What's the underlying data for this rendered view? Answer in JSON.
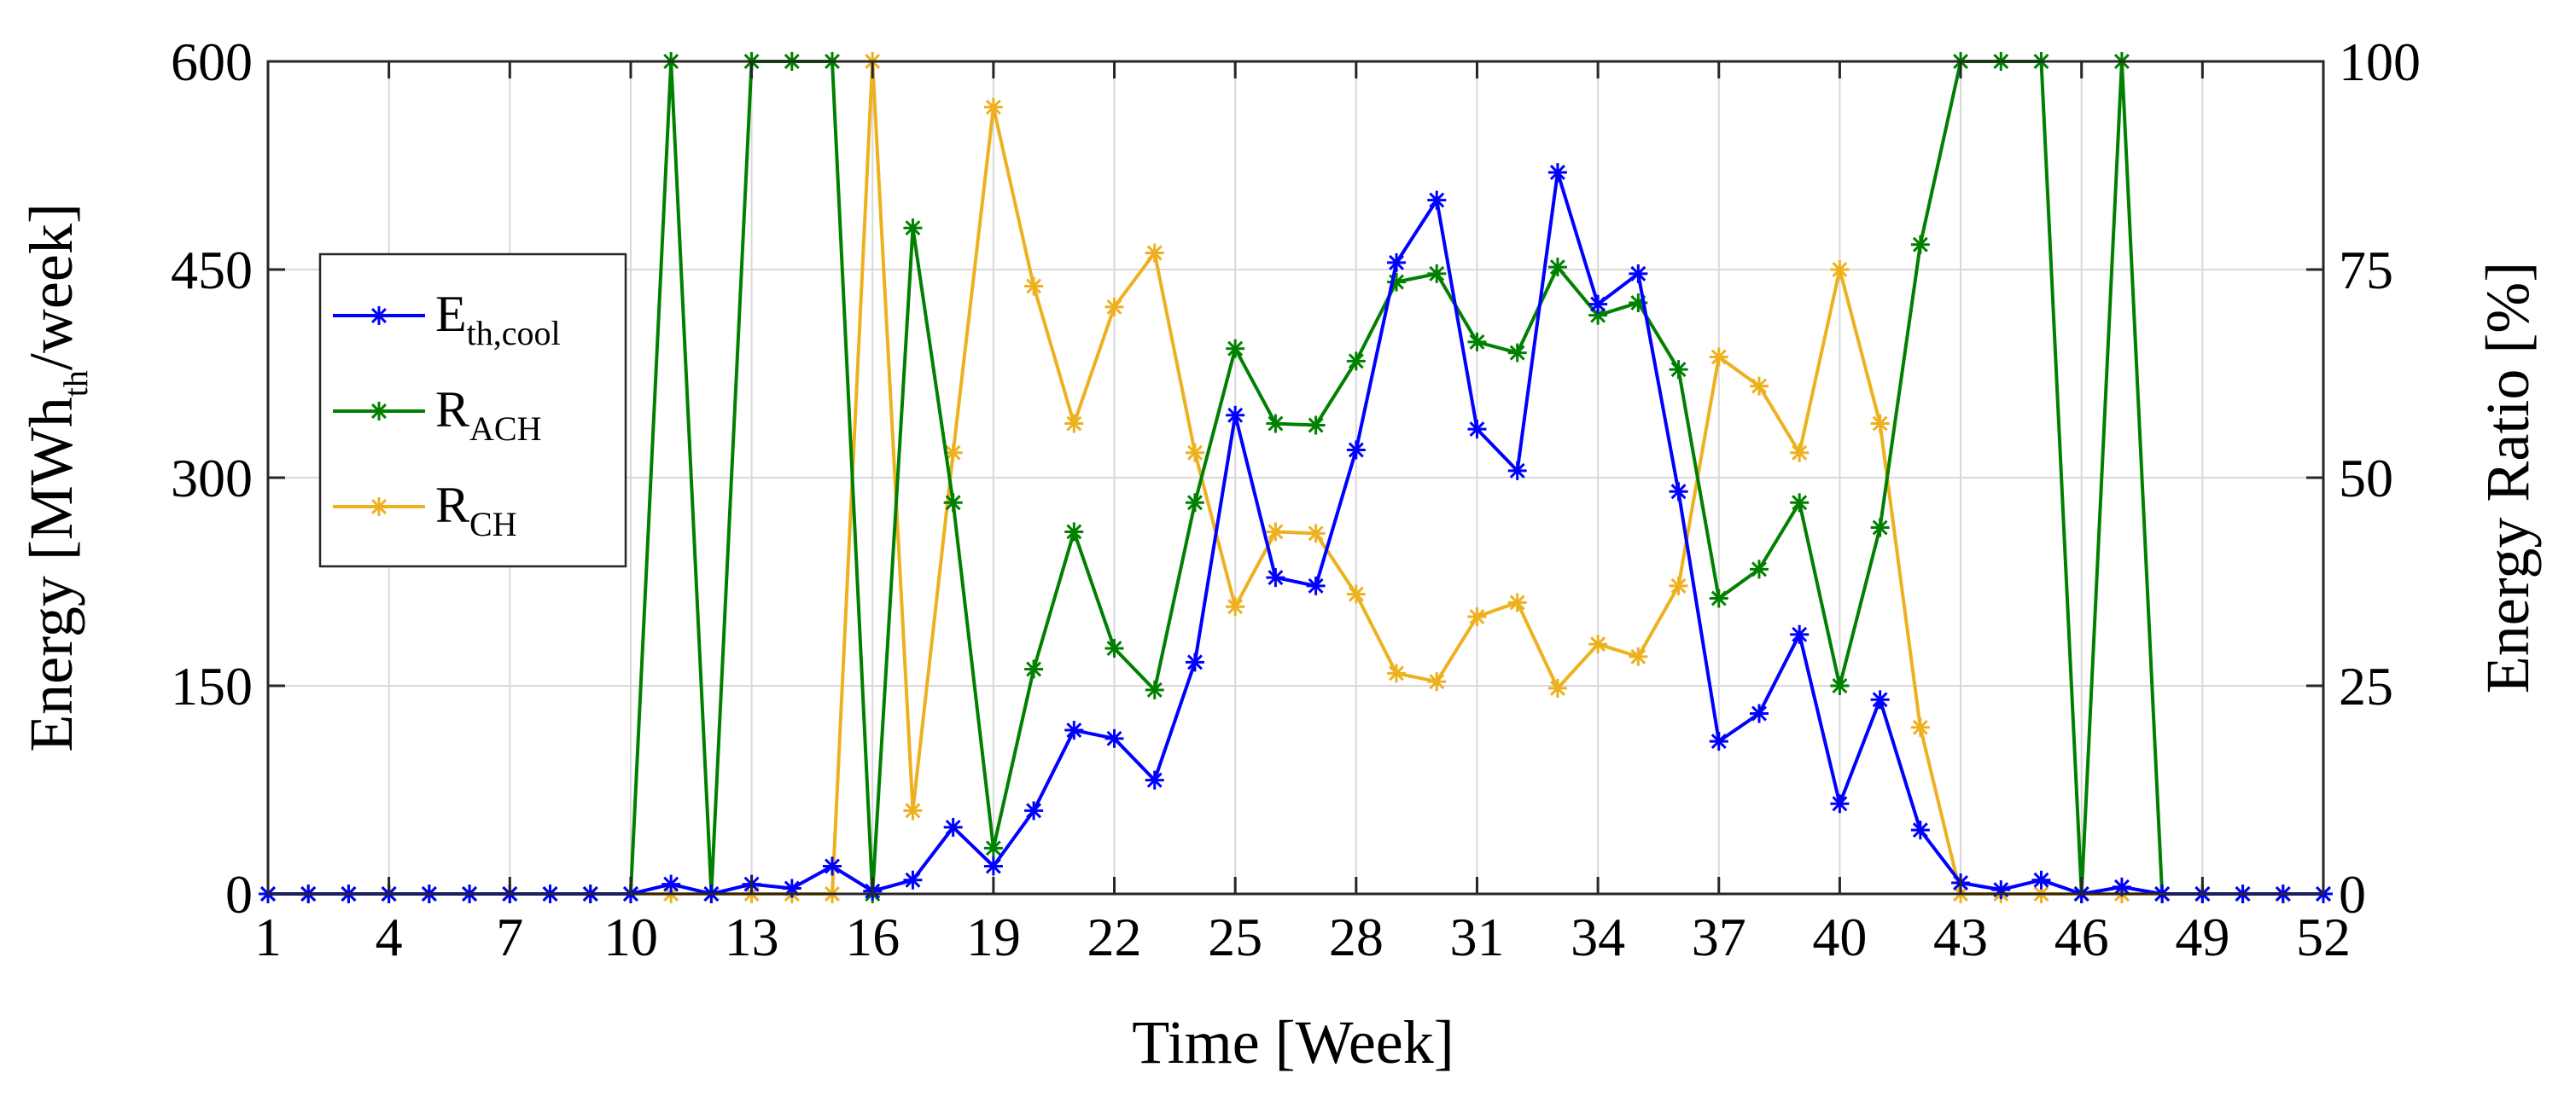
{
  "chart_data": {
    "type": "line",
    "xlabel": "Time [Week]",
    "ylabel_left": {
      "base": "Energy [MWh",
      "sub": "th",
      "tail": "/week]"
    },
    "ylabel_right": "Energy Ratio [%]",
    "x_ticks": [
      1,
      4,
      7,
      10,
      13,
      16,
      19,
      22,
      25,
      28,
      31,
      34,
      37,
      40,
      43,
      46,
      49,
      52
    ],
    "xlim": [
      1,
      52
    ],
    "ylim_left": [
      0,
      600
    ],
    "yticks_left": [
      0,
      150,
      300,
      450,
      600
    ],
    "ylim_right": [
      0,
      100
    ],
    "yticks_right": [
      0,
      25,
      50,
      75,
      100
    ],
    "grid": true,
    "legend_position": "left",
    "series": [
      {
        "name": "E_th,cool",
        "label_base": "E",
        "label_sub": "th,cool",
        "axis": "left",
        "color": "#0000FF",
        "x": [
          1,
          2,
          3,
          4,
          5,
          6,
          7,
          8,
          9,
          10,
          11,
          12,
          13,
          14,
          15,
          16,
          17,
          18,
          19,
          20,
          21,
          22,
          23,
          24,
          25,
          26,
          27,
          28,
          29,
          30,
          31,
          32,
          33,
          34,
          35,
          36,
          37,
          38,
          39,
          40,
          41,
          42,
          43,
          44,
          45,
          46,
          47,
          48,
          49,
          50,
          51,
          52
        ],
        "values": [
          0,
          0,
          0,
          0,
          0,
          0,
          0,
          0,
          0,
          0,
          7,
          0,
          7,
          4,
          20,
          2,
          10,
          48,
          20,
          60,
          118,
          112,
          82,
          167,
          345,
          228,
          222,
          320,
          455,
          500,
          335,
          305,
          520,
          425,
          447,
          290,
          110,
          130,
          187,
          65,
          140,
          46,
          8,
          3,
          10,
          0,
          5,
          0,
          0,
          0,
          0,
          0
        ]
      },
      {
        "name": "R_ACH",
        "label_base": "R",
        "label_sub": "ACH",
        "axis": "right",
        "color": "#008000",
        "x": [
          1,
          2,
          3,
          4,
          5,
          6,
          7,
          8,
          9,
          10,
          11,
          12,
          13,
          14,
          15,
          16,
          17,
          18,
          19,
          20,
          21,
          22,
          23,
          24,
          25,
          26,
          27,
          28,
          29,
          30,
          31,
          32,
          33,
          34,
          35,
          36,
          37,
          38,
          39,
          40,
          41,
          42,
          43,
          44,
          45,
          46,
          47,
          48,
          49,
          50,
          51,
          52
        ],
        "values": [
          0,
          0,
          0,
          0,
          0,
          0,
          0,
          0,
          0,
          0,
          100,
          0,
          100,
          100,
          100,
          0,
          80,
          47,
          5.5,
          27,
          43.5,
          29.5,
          24.5,
          47,
          65.5,
          56.5,
          56.3,
          64,
          73.5,
          74.5,
          66.3,
          65,
          75.3,
          69.5,
          71,
          63,
          35.5,
          39,
          47,
          25,
          44,
          78,
          100,
          100,
          100,
          0,
          100,
          0,
          0,
          0,
          0,
          0
        ]
      },
      {
        "name": "R_CH",
        "label_base": "R",
        "label_sub": "CH",
        "axis": "right",
        "color": "#EDB120",
        "x": [
          1,
          2,
          3,
          4,
          5,
          6,
          7,
          8,
          9,
          10,
          11,
          12,
          13,
          14,
          15,
          16,
          17,
          18,
          19,
          20,
          21,
          22,
          23,
          24,
          25,
          26,
          27,
          28,
          29,
          30,
          31,
          32,
          33,
          34,
          35,
          36,
          37,
          38,
          39,
          40,
          41,
          42,
          43,
          44,
          45,
          46,
          47,
          48,
          49,
          50,
          51,
          52
        ],
        "values": [
          0,
          0,
          0,
          0,
          0,
          0,
          0,
          0,
          0,
          0,
          0,
          0,
          0,
          0,
          0,
          100,
          10,
          53,
          94.5,
          73,
          56.5,
          70.5,
          77,
          53,
          34.5,
          43.5,
          43.3,
          36,
          26.5,
          25.5,
          33.3,
          35,
          24.7,
          30,
          28.5,
          37,
          64.5,
          61,
          53,
          75,
          56.5,
          20,
          0,
          0,
          0,
          0,
          0,
          0,
          0,
          0,
          0,
          0
        ]
      }
    ]
  }
}
